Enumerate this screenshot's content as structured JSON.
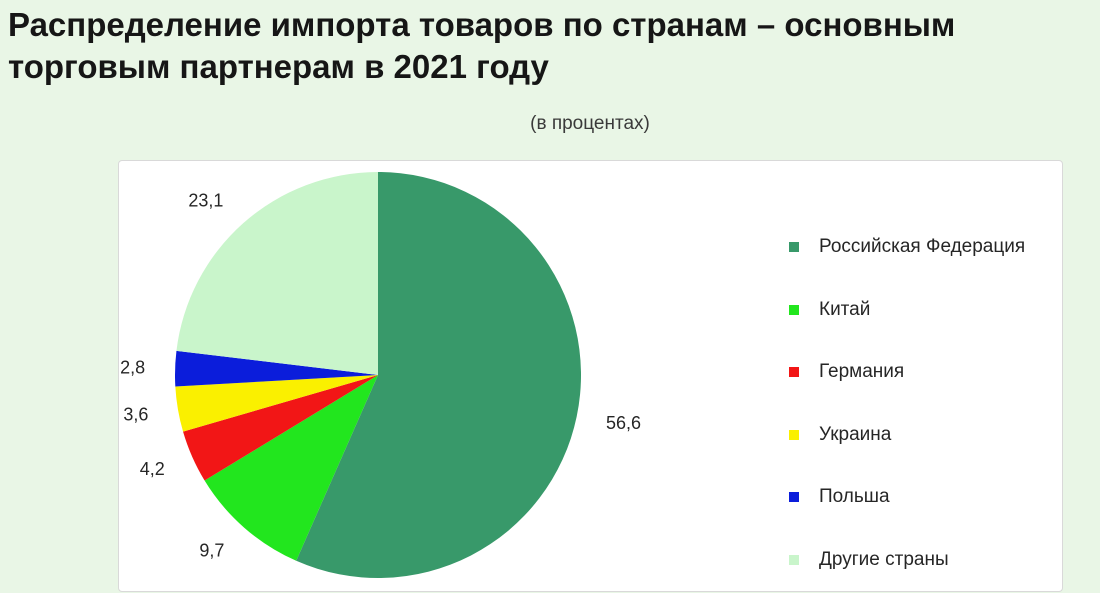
{
  "title": "Распределение импорта товаров по странам – основным торговым партнерам в 2021 году",
  "chart_data": {
    "type": "pie",
    "title": "Распределение импорта товаров по странам – основным торговым партнерам в 2021 году",
    "subtitle": "(в процентах)",
    "legend_position": "right",
    "slices": [
      {
        "name": "Российская Федерация",
        "value": 56.6,
        "label": "56,6",
        "color": "#38996a"
      },
      {
        "name": "Китай",
        "value": 9.7,
        "label": "9,7",
        "color": "#22e61e"
      },
      {
        "name": "Германия",
        "value": 4.2,
        "label": "4,2",
        "color": "#f21616"
      },
      {
        "name": "Украина",
        "value": 3.6,
        "label": "3,6",
        "color": "#faf000"
      },
      {
        "name": "Польша",
        "value": 2.8,
        "label": "2,8",
        "color": "#0b1ddb"
      },
      {
        "name": "Другие страны",
        "value": 23.1,
        "label": "23,1",
        "color": "#c9f5cb"
      }
    ]
  }
}
